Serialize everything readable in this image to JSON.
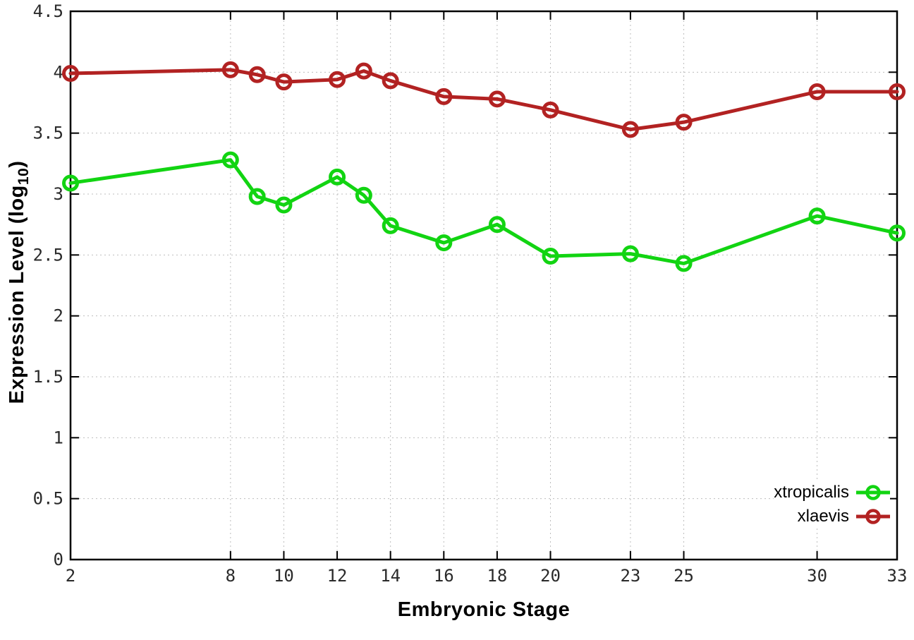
{
  "chart_data": {
    "type": "line",
    "title": "",
    "xlabel": "Embryonic Stage",
    "ylabel": "Expression Level (log10)",
    "ylabel_parts": {
      "main": "Expression Level (log",
      "sub": "10",
      "suffix": ")"
    },
    "x": [
      2,
      8,
      9,
      10,
      12,
      13,
      14,
      16,
      18,
      20,
      23,
      25,
      30,
      33
    ],
    "series": [
      {
        "name": "xtropicalis",
        "color": "#12d412",
        "values": [
          3.09,
          3.28,
          2.98,
          2.91,
          3.14,
          2.99,
          2.74,
          2.6,
          2.75,
          2.49,
          2.51,
          2.43,
          2.82,
          2.68
        ]
      },
      {
        "name": "xlaevis",
        "color": "#b22222",
        "values": [
          3.99,
          4.02,
          3.98,
          3.92,
          3.94,
          4.01,
          3.93,
          3.8,
          3.78,
          3.69,
          3.53,
          3.59,
          3.84,
          3.84
        ]
      }
    ],
    "xticks": [
      2,
      8,
      10,
      12,
      14,
      16,
      18,
      20,
      23,
      25,
      30,
      33
    ],
    "xtick_labels": [
      "2",
      "8",
      "10",
      "12",
      "14",
      "16",
      "18",
      "20",
      "23",
      "25",
      "30",
      "33"
    ],
    "yticks": [
      0,
      0.5,
      1,
      1.5,
      2,
      2.5,
      3,
      3.5,
      4,
      4.5
    ],
    "ytick_labels": [
      "0",
      "0.5",
      "1",
      "1.5",
      "2",
      "2.5",
      "3",
      "3.5",
      "4",
      "4.5"
    ],
    "xlim": [
      2,
      33
    ],
    "ylim": [
      0,
      4.5
    ],
    "grid": true,
    "grid_style": "dotted",
    "grid_color": "#bdbdbd",
    "border_color": "#000000",
    "background_color": "#ffffff",
    "legend_position": "inside-bottom-right",
    "marker": "open-circle"
  }
}
